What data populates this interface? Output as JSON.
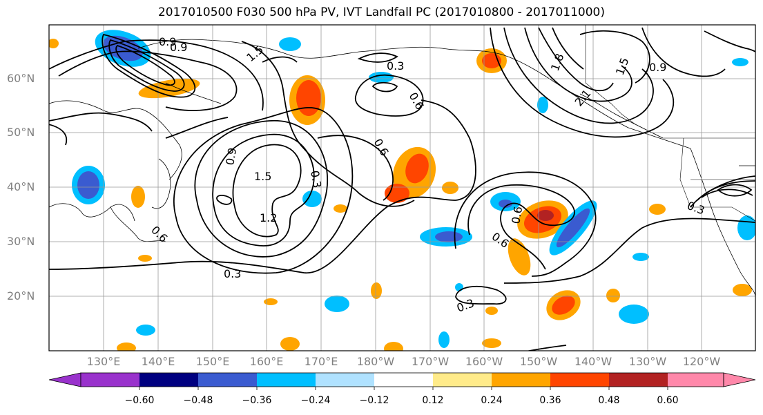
{
  "title": "2017010500 F030 500 hPa PV, IVT Landfall PC (2017010800 - 2017011000)",
  "lat_labels": [
    "60°N",
    "50°N",
    "40°N",
    "30°N",
    "20°N"
  ],
  "lon_labels": [
    "130°E",
    "140°E",
    "150°E",
    "160°E",
    "170°E",
    "180°W",
    "170°W",
    "160°W",
    "150°W",
    "140°W",
    "130°W",
    "120°W"
  ],
  "colorbar": {
    "ticks": [
      "−0.60",
      "−0.48",
      "−0.36",
      "−0.24",
      "−0.12",
      "0.12",
      "0.24",
      "0.36",
      "0.48",
      "0.60"
    ],
    "colors": [
      "#9932cc",
      "#000080",
      "#3a5bd0",
      "#00bfff",
      "#b0e2ff",
      "#ffffff",
      "#ffeb8a",
      "#ffa500",
      "#ff4500",
      "#b22222",
      "#ff88aa"
    ]
  },
  "contour_labels": [
    "0.9",
    "1.5",
    "0.6",
    "0.3",
    "1.2",
    "0.9",
    "0.3",
    "0.6",
    "0.6",
    "1.8",
    "1.5",
    "2.1",
    "0.9",
    "0.9",
    "1.5",
    "0.3",
    "0.6",
    "0.6",
    "0.3",
    "0.3"
  ]
}
